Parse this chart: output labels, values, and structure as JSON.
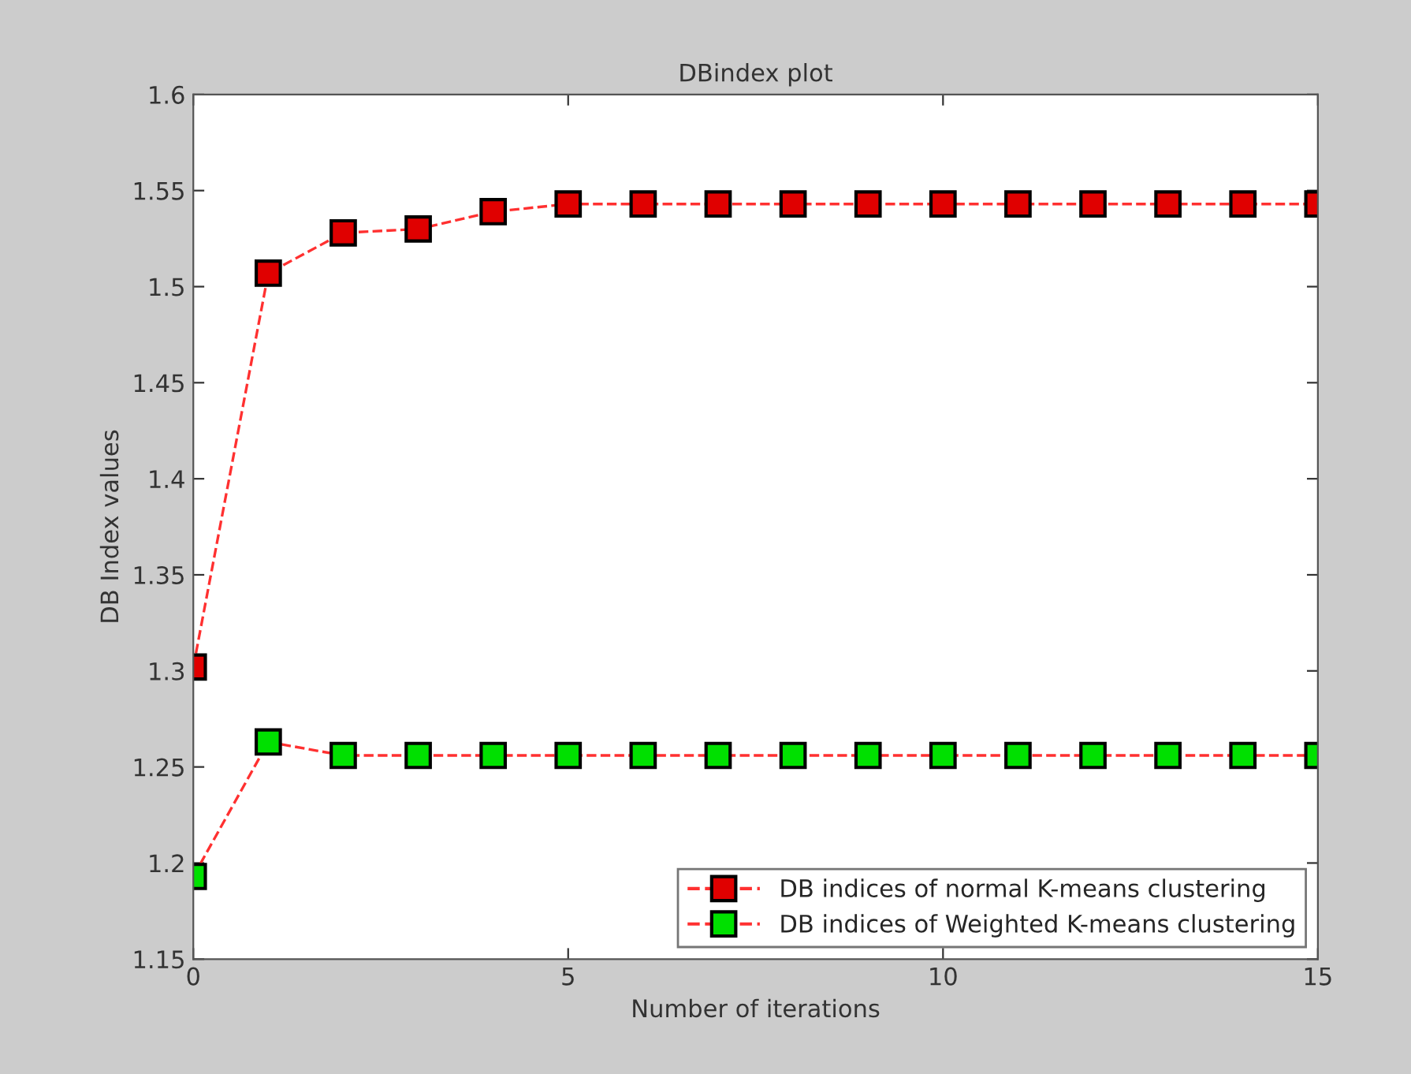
{
  "chart_data": {
    "type": "line",
    "title": "DBindex plot",
    "xlabel": "Number of iterations",
    "ylabel": "DB Index values",
    "x": [
      0,
      1,
      2,
      3,
      4,
      5,
      6,
      7,
      8,
      9,
      10,
      11,
      12,
      13,
      14,
      15
    ],
    "series": [
      {
        "name": "DB indices of normal K-means clustering",
        "color": "#e00000",
        "values": [
          1.302,
          1.507,
          1.528,
          1.53,
          1.539,
          1.543,
          1.543,
          1.543,
          1.543,
          1.543,
          1.543,
          1.543,
          1.543,
          1.543,
          1.543,
          1.543
        ]
      },
      {
        "name": "DB indices of Weighted K-means clustering",
        "color": "#00e000",
        "values": [
          1.193,
          1.263,
          1.256,
          1.256,
          1.256,
          1.256,
          1.256,
          1.256,
          1.256,
          1.256,
          1.256,
          1.256,
          1.256,
          1.256,
          1.256,
          1.256
        ]
      }
    ],
    "xlim": [
      0,
      15
    ],
    "xticks": [
      0,
      5,
      10,
      15
    ],
    "ylim": [
      1.15,
      1.6
    ],
    "yticks": [
      1.15,
      1.2,
      1.25,
      1.3,
      1.35,
      1.4,
      1.45,
      1.5,
      1.55,
      1.6
    ],
    "grid": false,
    "legend": "bottom right",
    "marker": "square",
    "line_style": "dashed"
  }
}
